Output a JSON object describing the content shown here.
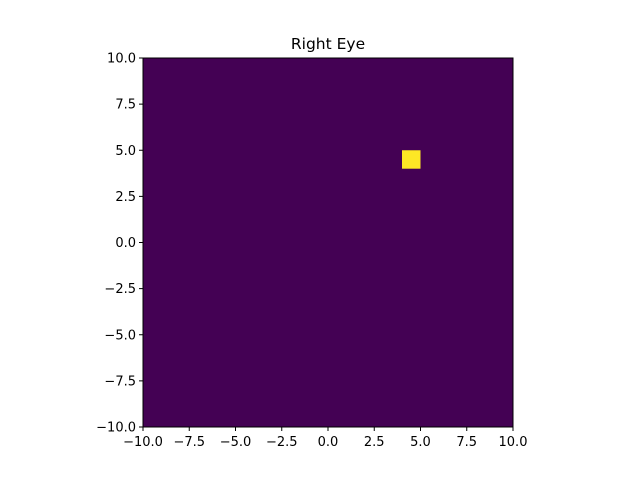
{
  "chart_data": {
    "type": "heatmap",
    "title": "Right Eye",
    "xlabel": "",
    "ylabel": "",
    "xlim": [
      -10,
      10
    ],
    "ylim": [
      -10,
      10
    ],
    "x_ticks": [
      -10.0,
      -7.5,
      -5.0,
      -2.5,
      0.0,
      2.5,
      5.0,
      7.5,
      10.0
    ],
    "y_ticks": [
      -10.0,
      -7.5,
      -5.0,
      -2.5,
      0.0,
      2.5,
      5.0,
      7.5,
      10.0
    ],
    "x_tick_labels": [
      "−10.0",
      "−7.5",
      "−5.0",
      "−2.5",
      "0.0",
      "2.5",
      "5.0",
      "7.5",
      "10.0"
    ],
    "y_tick_labels": [
      "−10.0",
      "−7.5",
      "−5.0",
      "−2.5",
      "0.0",
      "2.5",
      "5.0",
      "7.5",
      "10.0"
    ],
    "grid": false,
    "colormap": "viridis",
    "background_value": 0,
    "background_color": "#440154",
    "highlight_color": "#fde725",
    "cells": [
      {
        "x0": 4.0,
        "x1": 5.0,
        "y0": 4.0,
        "y1": 5.0,
        "value": 1
      }
    ]
  }
}
